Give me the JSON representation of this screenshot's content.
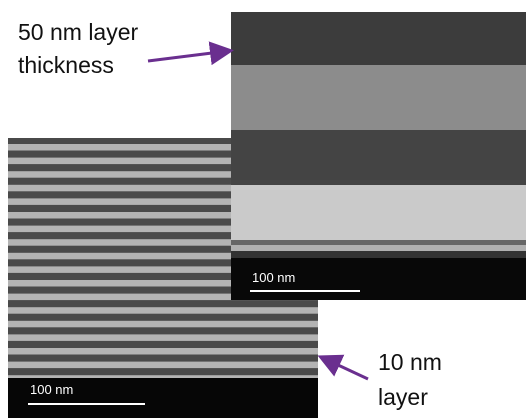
{
  "annotations": [
    {
      "lines": [
        "50 nm layer",
        "thickness"
      ]
    },
    {
      "lines": [
        "10 nm",
        "layer"
      ]
    }
  ],
  "images": [
    {
      "scale_bar": "100 nm"
    },
    {
      "scale_bar": "100 nm"
    }
  ]
}
